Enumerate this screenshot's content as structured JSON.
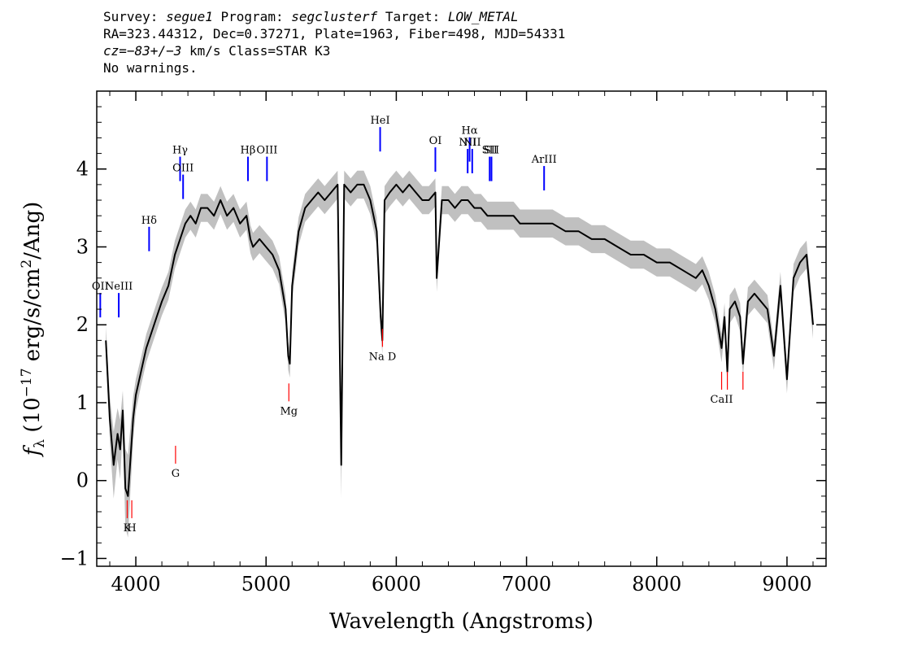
{
  "header": {
    "survey_label": "Survey:",
    "survey": "segue1",
    "program_label": "Program:",
    "program": "segclusterf",
    "target_label": "Target:",
    "target": "LOW_METAL",
    "line2": "RA=323.44312, Dec=0.37271, Plate=1963, Fiber=498, MJD=54331",
    "cz_label": "cz=",
    "cz_value": "−83+/−3",
    "cz_unit": "km/s",
    "class_text": "Class=STAR K3",
    "warnings": "No warnings."
  },
  "colors": {
    "flux": "#000000",
    "error_band": "#c0c0c0",
    "emission_marker": "#0000ff",
    "absorption_marker": "#ff0000"
  },
  "chart_data": {
    "type": "line",
    "xlabel": "Wavelength (Angstroms)",
    "ylabel": "f_λ (10^-17 erg/s/cm^2/Ang)",
    "xlim": [
      3700,
      9300
    ],
    "ylim": [
      -1.1,
      5.0
    ],
    "x_ticks": [
      4000,
      5000,
      6000,
      7000,
      8000,
      9000
    ],
    "y_ticks": [
      -1,
      0,
      1,
      2,
      3,
      4
    ],
    "series": [
      {
        "role": "flux",
        "x": [
          3770,
          3800,
          3830,
          3860,
          3880,
          3900,
          3920,
          3940,
          3960,
          3980,
          4000,
          4040,
          4080,
          4120,
          4160,
          4200,
          4250,
          4300,
          4340,
          4380,
          4420,
          4460,
          4500,
          4550,
          4600,
          4650,
          4700,
          4750,
          4800,
          4850,
          4880,
          4900,
          4950,
          5000,
          5050,
          5100,
          5150,
          5170,
          5183,
          5200,
          5250,
          5300,
          5350,
          5400,
          5450,
          5500,
          5550,
          5577,
          5600,
          5650,
          5700,
          5750,
          5800,
          5850,
          5880,
          5893,
          5910,
          5950,
          6000,
          6050,
          6100,
          6150,
          6200,
          6250,
          6300,
          6310,
          6350,
          6400,
          6450,
          6500,
          6550,
          6600,
          6650,
          6700,
          6750,
          6800,
          6850,
          6900,
          6950,
          7000,
          7100,
          7200,
          7300,
          7400,
          7500,
          7600,
          7700,
          7800,
          7900,
          8000,
          8100,
          8200,
          8300,
          8350,
          8400,
          8450,
          8498,
          8520,
          8542,
          8560,
          8600,
          8640,
          8662,
          8700,
          8750,
          8800,
          8850,
          8900,
          8950,
          9000,
          9050,
          9100,
          9150,
          9200
        ],
        "y": [
          1.8,
          0.8,
          0.2,
          0.6,
          0.4,
          0.9,
          -0.1,
          -0.2,
          0.3,
          0.8,
          1.1,
          1.4,
          1.7,
          1.9,
          2.1,
          2.3,
          2.5,
          2.9,
          3.1,
          3.3,
          3.4,
          3.3,
          3.5,
          3.5,
          3.4,
          3.6,
          3.4,
          3.5,
          3.3,
          3.4,
          3.1,
          3.0,
          3.1,
          3.0,
          2.9,
          2.7,
          2.2,
          1.6,
          1.5,
          2.5,
          3.2,
          3.5,
          3.6,
          3.7,
          3.6,
          3.7,
          3.8,
          0.2,
          3.8,
          3.7,
          3.8,
          3.8,
          3.6,
          3.2,
          2.1,
          1.8,
          3.6,
          3.7,
          3.8,
          3.7,
          3.8,
          3.7,
          3.6,
          3.6,
          3.7,
          2.6,
          3.6,
          3.6,
          3.5,
          3.6,
          3.6,
          3.5,
          3.5,
          3.4,
          3.4,
          3.4,
          3.4,
          3.4,
          3.3,
          3.3,
          3.3,
          3.3,
          3.2,
          3.2,
          3.1,
          3.1,
          3.0,
          2.9,
          2.9,
          2.8,
          2.8,
          2.7,
          2.6,
          2.7,
          2.5,
          2.2,
          1.7,
          2.1,
          1.4,
          2.2,
          2.3,
          2.1,
          1.5,
          2.3,
          2.4,
          2.3,
          2.2,
          1.6,
          2.5,
          1.3,
          2.6,
          2.8,
          2.9,
          2.0
        ]
      }
    ],
    "emission_lines": [
      {
        "label": "OII",
        "x": 3727,
        "y_label": 2.45
      },
      {
        "label": "NeIII",
        "x": 3869,
        "y_label": 2.45
      },
      {
        "label": "Hδ",
        "x": 4102,
        "y_label": 3.3
      },
      {
        "label": "Hγ",
        "x": 4340,
        "y_label": 4.2
      },
      {
        "label": "OIII",
        "x": 4363,
        "y_label": 3.97
      },
      {
        "label": "Hβ",
        "x": 4861,
        "y_label": 4.2
      },
      {
        "label": "OIII",
        "x": 5007,
        "y_label": 4.2
      },
      {
        "label": "HeI",
        "x": 5876,
        "y_label": 4.58
      },
      {
        "label": "OI",
        "x": 6300,
        "y_label": 4.32
      },
      {
        "label": "NII",
        "x": 6548,
        "y_label": 4.3
      },
      {
        "label": "Hα",
        "x": 6563,
        "y_label": 4.45
      },
      {
        "label": "NII",
        "x": 6583,
        "y_label": 4.3
      },
      {
        "label": "SII",
        "x": 6717,
        "y_label": 4.2
      },
      {
        "label": "SII",
        "x": 6731,
        "y_label": 4.2
      },
      {
        "label": "ArIII",
        "x": 7135,
        "y_label": 4.08
      }
    ],
    "absorption_lines": [
      {
        "label": "K",
        "x": 3934,
        "y_label": -0.65
      },
      {
        "label": "H",
        "x": 3969,
        "y_label": -0.65
      },
      {
        "label": "G",
        "x": 4305,
        "y_label": 0.05
      },
      {
        "label": "Mg",
        "x": 5175,
        "y_label": 0.85
      },
      {
        "label": "Na D",
        "x": 5894,
        "y_label": 1.55
      },
      {
        "label": "CaII",
        "x": 8498,
        "y_label": 1.0
      },
      {
        "label": "",
        "x": 8542,
        "y_label": 1.0
      },
      {
        "label": "",
        "x": 8662,
        "y_label": 1.0
      }
    ]
  }
}
